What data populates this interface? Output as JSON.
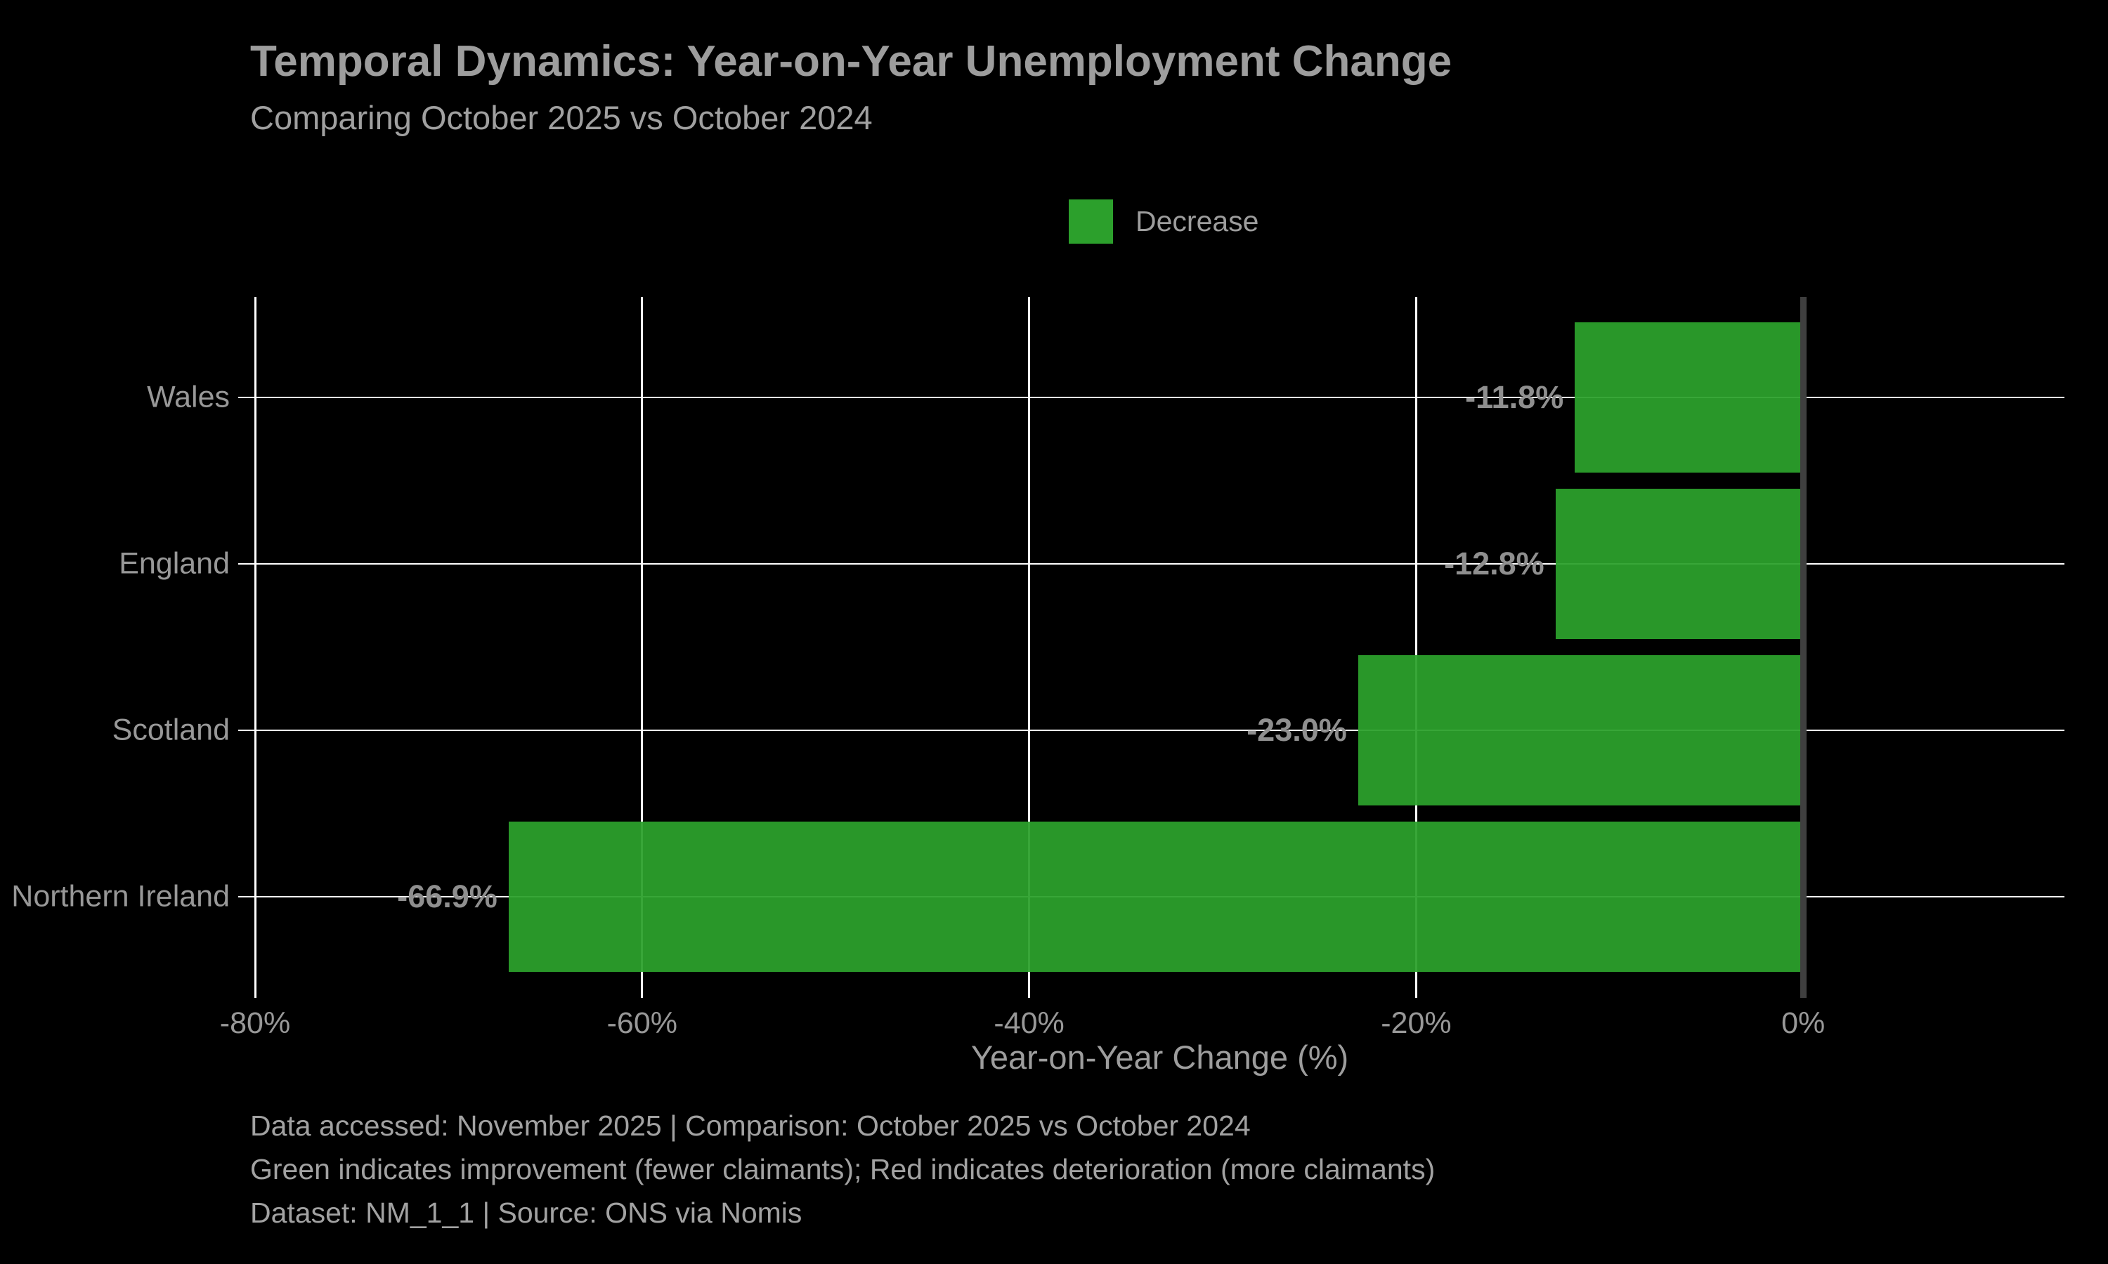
{
  "header": {
    "title": "Temporal Dynamics: Year-on-Year Unemployment Change",
    "subtitle": "Comparing October 2025 vs October 2024"
  },
  "legend": {
    "items": [
      {
        "label": "Decrease",
        "color": "#2ca02c"
      }
    ]
  },
  "chart_data": {
    "type": "bar",
    "orientation": "horizontal",
    "title": "Temporal Dynamics: Year-on-Year Unemployment Change",
    "subtitle": "Comparing October 2025 vs October 2024",
    "categories": [
      "Wales",
      "England",
      "Scotland",
      "Northern Ireland"
    ],
    "values": [
      -11.8,
      -12.8,
      -23.0,
      -66.9
    ],
    "value_labels": [
      "-11.8%",
      "-12.8%",
      "-23.0%",
      "-66.9%"
    ],
    "series_name": "Decrease",
    "bar_color": "#2ca02c",
    "xlabel": "Year-on-Year Change (%)",
    "xlim": [
      -80,
      13.5
    ],
    "x_ticks": [
      {
        "value": -80,
        "label": "-80%"
      },
      {
        "value": -60,
        "label": "-60%"
      },
      {
        "value": -40,
        "label": "-40%"
      },
      {
        "value": -20,
        "label": "-20%"
      },
      {
        "value": 0,
        "label": "0%"
      }
    ],
    "grid": true,
    "gridline_color": "#ffffff",
    "zero_line_color": "#3f3f3f",
    "legend_position": "top-center",
    "background_color": "#000000"
  },
  "footer": {
    "lines": [
      "Data accessed: November 2025 | Comparison: October 2025 vs October 2024",
      "Green indicates improvement (fewer claimants); Red indicates deterioration (more claimants)",
      "Dataset: NM_1_1 | Source: ONS via Nomis"
    ]
  },
  "colors": {
    "background": "#000000",
    "bar_green": "#2ca02c",
    "zero_line": "#3f3f3f",
    "grid": "#ffffff",
    "title_text": "#9d9d9d",
    "label_text": "#989898",
    "value_text": "#8f8f8f",
    "footer_text": "#a2a2a2"
  }
}
